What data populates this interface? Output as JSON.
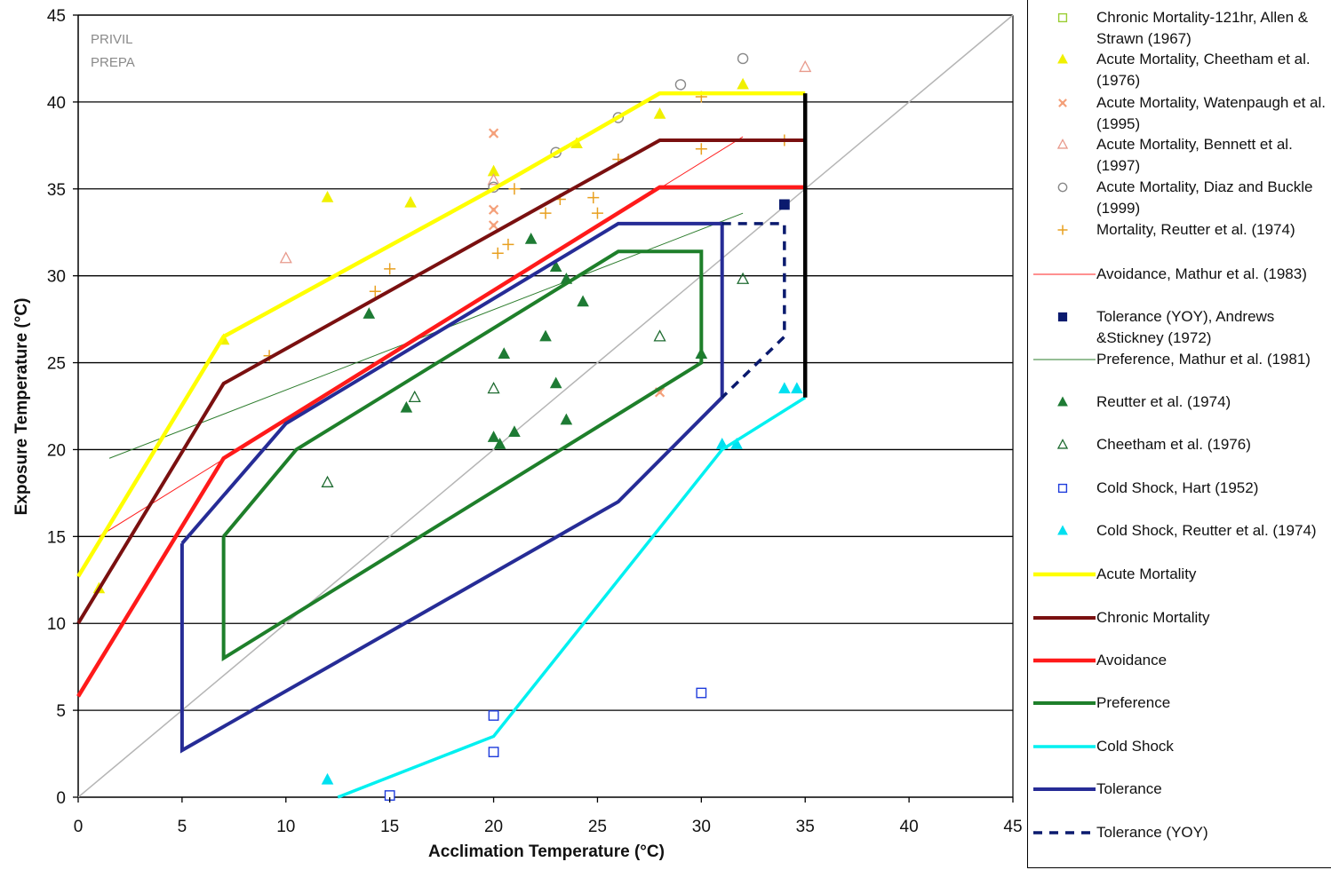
{
  "chart_data": {
    "type": "scatter",
    "title": "",
    "xlabel": "Acclimation Temperature (°C)",
    "ylabel": "Exposure Temperature (°C)",
    "xlim": [
      0,
      45
    ],
    "ylim": [
      0,
      45
    ],
    "x_ticks": [
      "0",
      "5",
      "10",
      "15",
      "20",
      "25",
      "30",
      "35",
      "40",
      "45"
    ],
    "y_ticks": [
      "0",
      "5",
      "10",
      "15",
      "20",
      "25",
      "30",
      "35",
      "40",
      "45"
    ],
    "grid": "horizontal",
    "watermark": [
      "PRIVIL",
      "PREPA"
    ],
    "reference_line": {
      "name": "",
      "color": "#b5b5b5",
      "x": [
        0,
        45
      ],
      "y": [
        0,
        45
      ]
    },
    "series": [
      {
        "name": "Chronic Mortality-121hr, Allen & Strawn (1967)",
        "kind": "point",
        "marker": "square-open",
        "color": "#9acd32",
        "points": []
      },
      {
        "name": "Acute Mortality, Cheetham et al. (1976)",
        "kind": "point",
        "marker": "triangle",
        "color": "#f0f000",
        "points": [
          [
            1,
            12
          ],
          [
            7,
            26.3
          ],
          [
            12,
            34.5
          ],
          [
            16,
            34.2
          ],
          [
            20,
            36
          ],
          [
            24,
            37.6
          ],
          [
            28,
            39.3
          ],
          [
            32,
            41
          ]
        ]
      },
      {
        "name": "Acute Mortality, Watenpaugh et al. (1995)",
        "kind": "point",
        "marker": "x",
        "color": "#f4a07a",
        "points": [
          [
            20,
            38.2
          ],
          [
            20,
            33.8
          ],
          [
            20,
            32.9
          ],
          [
            28,
            23.3
          ]
        ]
      },
      {
        "name": "Acute Mortality, Bennett et al. (1997)",
        "kind": "point",
        "marker": "triangle-open",
        "color": "#e89a8c",
        "points": [
          [
            10,
            31
          ],
          [
            20,
            35.5
          ],
          [
            35,
            42
          ]
        ]
      },
      {
        "name": "Acute Mortality, Diaz and Buckle (1999)",
        "kind": "point",
        "marker": "circle-open",
        "color": "#888888",
        "points": [
          [
            20,
            35.1
          ],
          [
            23,
            37.1
          ],
          [
            26,
            39.1
          ],
          [
            29,
            41
          ],
          [
            32,
            42.5
          ]
        ]
      },
      {
        "name": "Mortality, Reutter et al. (1974)",
        "kind": "point",
        "marker": "plus",
        "color": "#e8a020",
        "points": [
          [
            9.2,
            25.4
          ],
          [
            14.3,
            29.1
          ],
          [
            15,
            30.4
          ],
          [
            20.2,
            31.3
          ],
          [
            20.7,
            31.8
          ],
          [
            21,
            35
          ],
          [
            22.5,
            33.6
          ],
          [
            23.2,
            34.4
          ],
          [
            24.8,
            34.5
          ],
          [
            25,
            33.6
          ],
          [
            26,
            36.7
          ],
          [
            30,
            40.3
          ],
          [
            30,
            37.3
          ],
          [
            34,
            37.8
          ]
        ]
      },
      {
        "name": "Avoidance, Mathur et al. (1983)",
        "kind": "line",
        "color": "#ff2020",
        "width": 1,
        "points": [
          [
            1,
            15
          ],
          [
            32,
            38
          ]
        ]
      },
      {
        "name": "Tolerance (YOY), Andrews &Stickney (1972)",
        "kind": "point",
        "marker": "square",
        "color": "#0a1a6e",
        "points": [
          [
            34,
            34.1
          ]
        ]
      },
      {
        "name": "Preference, Mathur et al. (1981)",
        "kind": "line",
        "color": "#2e7d2e",
        "width": 1,
        "points": [
          [
            1.5,
            19.5
          ],
          [
            32,
            33.6
          ]
        ]
      },
      {
        "name": "Reutter et al. (1974)",
        "kind": "point",
        "marker": "triangle",
        "color": "#1e7b34",
        "points": [
          [
            14,
            27.8
          ],
          [
            15.8,
            22.4
          ],
          [
            20,
            20.7
          ],
          [
            20.3,
            20.3
          ],
          [
            20.5,
            25.5
          ],
          [
            21,
            21
          ],
          [
            21.8,
            32.1
          ],
          [
            22.5,
            26.5
          ],
          [
            23,
            23.8
          ],
          [
            23,
            30.5
          ],
          [
            23.5,
            21.7
          ],
          [
            23.5,
            29.8
          ],
          [
            24.3,
            28.5
          ],
          [
            30,
            25.5
          ]
        ]
      },
      {
        "name": "Cheetham et al. (1976)",
        "kind": "point",
        "marker": "triangle-open",
        "color": "#1e6b30",
        "points": [
          [
            12,
            18.1
          ],
          [
            16.2,
            23
          ],
          [
            20,
            23.5
          ],
          [
            28,
            26.5
          ],
          [
            32,
            29.8
          ]
        ]
      },
      {
        "name": "Cold Shock, Hart (1952)",
        "kind": "point",
        "marker": "square-open",
        "color": "#1e3cdc",
        "points": [
          [
            15,
            0.1
          ],
          [
            20,
            2.6
          ],
          [
            20,
            4.7
          ],
          [
            30,
            6
          ]
        ]
      },
      {
        "name": "Cold Shock, Reutter et al. (1974)",
        "kind": "point",
        "marker": "triangle",
        "color": "#00e0f0",
        "points": [
          [
            12,
            1
          ],
          [
            31,
            20.3
          ],
          [
            31.7,
            20.3
          ],
          [
            34,
            23.5
          ],
          [
            34.6,
            23.5
          ]
        ]
      },
      {
        "name": "Acute Mortality",
        "kind": "line",
        "color": "#ffff00",
        "width": 4.5,
        "points": [
          [
            0,
            12.7
          ],
          [
            7,
            26.5
          ],
          [
            20,
            35
          ],
          [
            28,
            40.5
          ],
          [
            35,
            40.5
          ]
        ]
      },
      {
        "name": "Chronic Mortality",
        "kind": "line",
        "color": "#7a1010",
        "width": 4,
        "points": [
          [
            0,
            10
          ],
          [
            7,
            23.8
          ],
          [
            28,
            37.8
          ],
          [
            35,
            37.8
          ]
        ]
      },
      {
        "name": "Avoidance",
        "kind": "line",
        "color": "#ff1a1a",
        "width": 4.5,
        "points": [
          [
            0,
            5.8
          ],
          [
            7,
            19.5
          ],
          [
            28,
            35.1
          ],
          [
            35,
            35.1
          ]
        ]
      },
      {
        "name": "Preference",
        "kind": "line",
        "color": "#1e7f2a",
        "width": 4,
        "points": [
          [
            7,
            15
          ],
          [
            10.5,
            20
          ],
          [
            26,
            31.4
          ],
          [
            30,
            31.4
          ],
          [
            30,
            25
          ],
          [
            7,
            8
          ],
          [
            7,
            15
          ]
        ]
      },
      {
        "name": "Cold Shock",
        "kind": "line",
        "color": "#00f0f0",
        "width": 3.5,
        "points": [
          [
            12.5,
            0
          ],
          [
            20,
            3.5
          ],
          [
            31,
            20
          ],
          [
            35,
            23
          ]
        ]
      },
      {
        "name": "Tolerance",
        "kind": "line",
        "color": "#262c96",
        "width": 4,
        "points": [
          [
            5,
            14.6
          ],
          [
            10,
            21.5
          ],
          [
            26,
            33
          ],
          [
            31,
            33
          ],
          [
            31,
            23
          ],
          [
            26,
            17
          ],
          [
            5,
            2.7
          ],
          [
            5,
            14.6
          ]
        ]
      },
      {
        "name": "Tolerance (YOY)",
        "kind": "line",
        "dash": "10,8",
        "color": "#0a1a6e",
        "width": 3.5,
        "points": [
          [
            31,
            33
          ],
          [
            34,
            33
          ],
          [
            34,
            26.5
          ],
          [
            31,
            23
          ]
        ]
      },
      {
        "name": "",
        "kind": "line",
        "color": "#000000",
        "width": 4.5,
        "points": [
          [
            35,
            40.5
          ],
          [
            35,
            23
          ]
        ]
      }
    ]
  }
}
